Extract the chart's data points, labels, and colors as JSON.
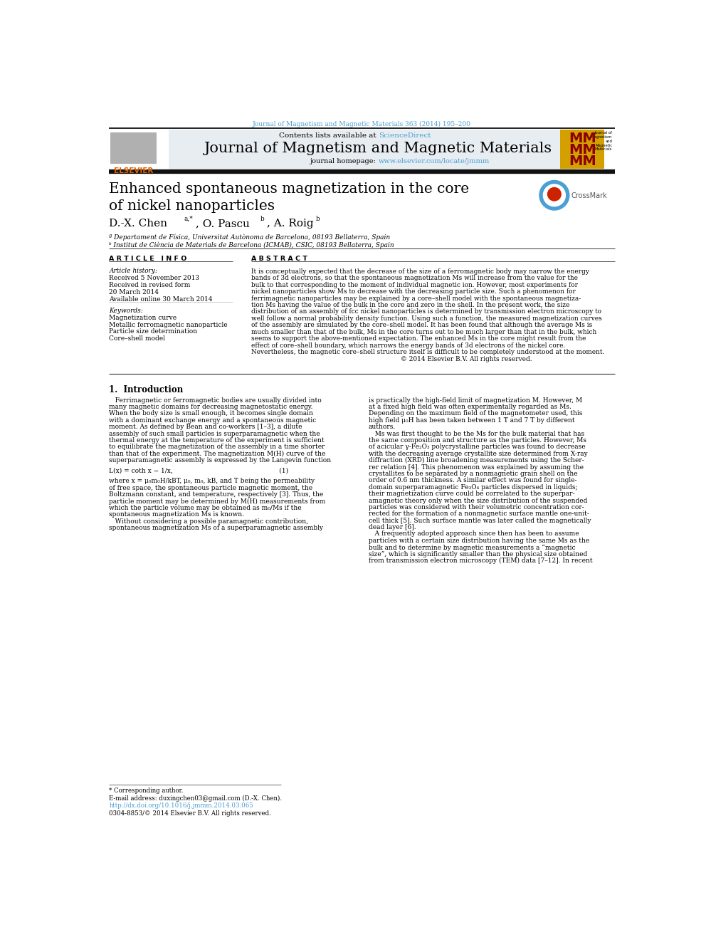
{
  "page_width": 9.92,
  "page_height": 13.23,
  "bg_color": "#ffffff",
  "top_journal_line": "Journal of Magnetism and Magnetic Materials 363 (2014) 195–200",
  "sciencedirect_color": "#4a9fd4",
  "journal_title": "Journal of Magnetism and Magnetic Materials",
  "journal_homepage_url": "www.elsevier.com/locate/jmmm",
  "journal_homepage_url_color": "#4a9fd4",
  "header_bg": "#e8edf2",
  "article_title_line1": "Enhanced spontaneous magnetization in the core",
  "article_title_line2": "of nickel nanoparticles",
  "affil1": "ª Departament de Física, Universitat Autònoma de Barcelona, 08193 Bellaterra, Spain",
  "affil2": "ᵇ Institut de Ciència de Materials de Barcelona (ICMAB), CSIC, 08193 Bellaterra, Spain",
  "section_article_info": "A R T I C L E   I N F O",
  "section_abstract": "A B S T R A C T",
  "article_history_label": "Article history:",
  "received1": "Received 5 November 2013",
  "received_revised": "Received in revised form",
  "revised_date": "20 March 2014",
  "available": "Available online 30 March 2014",
  "keywords_label": "Keywords:",
  "keywords": [
    "Magnetization curve",
    "Metallic ferromagnetic nanoparticle",
    "Particle size determination",
    "Core–shell model"
  ],
  "abstract_lines": [
    "It is conceptually expected that the decrease of the size of a ferromagnetic body may narrow the energy",
    "bands of 3d electrons, so that the spontaneous magnetization Ms will increase from the value for the",
    "bulk to that corresponding to the moment of individual magnetic ion. However, most experiments for",
    "nickel nanoparticles show Ms to decrease with the decreasing particle size. Such a phenomenon for",
    "ferrimagnetic nanoparticles may be explained by a core–shell model with the spontaneous magnetiza-",
    "tion Ms having the value of the bulk in the core and zero in the shell. In the present work, the size",
    "distribution of an assembly of fcc nickel nanoparticles is determined by transmission electron microscopy to",
    "well follow a normal probability density function. Using such a function, the measured magnetization curves",
    "of the assembly are simulated by the core–shell model. It has been found that although the average Ms is",
    "much smaller than that of the bulk, Ms in the core turns out to be much larger than that in the bulk, which",
    "seems to support the above-mentioned expectation. The enhanced Ms in the core might result from the",
    "effect of core–shell boundary, which narrows the energy bands of 3d electrons of the nickel core.",
    "Nevertheless, the magnetic core–shell structure itself is difficult to be completely understood at the moment.",
    "                                                                         © 2014 Elsevier B.V. All rights reserved."
  ],
  "section1_title": "1.  Introduction",
  "intro_left": [
    "   Ferrimagnetic or ferromagnetic bodies are usually divided into",
    "many magnetic domains for decreasing magnetostatic energy.",
    "When the body size is small enough, it becomes single domain",
    "with a dominant exchange energy and a spontaneous magnetic",
    "moment. As defined by Bean and co-workers [1–3], a dilute",
    "assembly of such small particles is superparamagnetic when the",
    "thermal energy at the temperature of the experiment is sufficient",
    "to equilibrate the magnetization of the assembly in a time shorter",
    "than that of the experiment. The magnetization M(H) curve of the",
    "superparamagnetic assembly is expressed by the Langevin function",
    "",
    "L(x) = coth x − 1/x,                                                    (1)",
    "",
    "where x = μ₀m₀H/kBT, μ₀, m₀, kB, and T being the permeability",
    "of free space, the spontaneous particle magnetic moment, the",
    "Boltzmann constant, and temperature, respectively [3]. Thus, the",
    "particle moment may be determined by M(H) measurements from",
    "which the particle volume may be obtained as m₀/Ms if the",
    "spontaneous magnetization Ms is known.",
    "   Without considering a possible paramagnetic contribution,",
    "spontaneous magnetization Ms of a superparamagnetic assembly"
  ],
  "intro_right": [
    "is practically the high-field limit of magnetization M. However, M",
    "at a fixed high field was often experimentally regarded as Ms.",
    "Depending on the maximum field of the magnetometer used, this",
    "high field μ₀H has been taken between 1 T and 7 T by different",
    "authors.",
    "   Ms was first thought to be the Ms for the bulk material that has",
    "the same composition and structure as the particles. However, Ms",
    "of acicular γ-Fe₂O₃ polycrystalline particles was found to decrease",
    "with the decreasing average crystallite size determined from X-ray",
    "diffraction (XRD) line broadening measurements using the Scher-",
    "rer relation [4]. This phenomenon was explained by assuming the",
    "crystallites to be separated by a nonmagnetic grain shell on the",
    "order of 0.6 nm thickness. A similar effect was found for single-",
    "domain superparamagnetic Fe₃O₄ particles dispersed in liquids;",
    "their magnetization curve could be correlated to the superpar-",
    "amagnetic theory only when the size distribution of the suspended",
    "particles was considered with their volumetric concentration cor-",
    "rected for the formation of a nonmagnetic surface mantle one-unit-",
    "cell thick [5]. Such surface mantle was later called the magnetically",
    "dead layer [6].",
    "   A frequently adopted approach since then has been to assume",
    "particles with a certain size distribution having the same Ms as the",
    "bulk and to determine by magnetic measurements a “magnetic",
    "size”, which is significantly smaller than the physical size obtained",
    "from transmission electron microscopy (TEM) data [7–12]. In recent"
  ],
  "footnote_star": "* Corresponding author.",
  "footnote_email": "E-mail address: duxingchen03@gmail.com (D.-X. Chen).",
  "footnote_doi": "http://dx.doi.org/10.1016/j.jmmm.2014.03.065",
  "footnote_issn": "0304-8853/© 2014 Elsevier B.V. All rights reserved."
}
